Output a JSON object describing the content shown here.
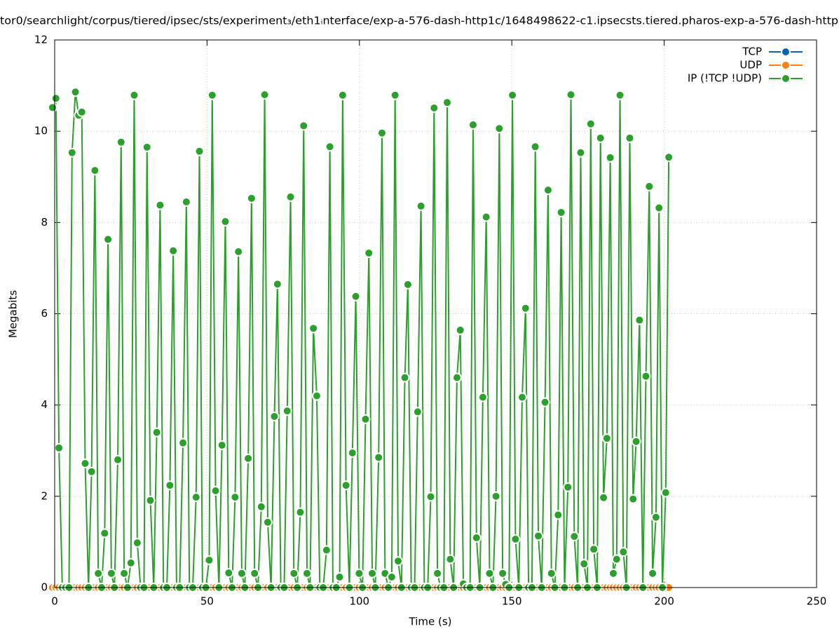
{
  "chart_data": {
    "type": "line",
    "title": "tor0/searchlight/corpus/tiered/ipsec/sts/experiment₃/eth1ᵢnterface/exp-a-576-dash-http1c/1648498622-c1.ipsecsts.tiered.pharos-exp-a-576-dash-http",
    "x_label": "Time (s)",
    "y_label": "Megabits",
    "xlim": [
      0,
      250
    ],
    "xticks": [
      0,
      50,
      100,
      150,
      200,
      250
    ],
    "ylim": [
      0,
      12
    ],
    "yticks": [
      0,
      2,
      4,
      6,
      8,
      10,
      12
    ],
    "grid": true,
    "legend": "top-right",
    "x": [
      -0.7,
      0.4,
      1.4,
      2.5,
      3.6,
      4.7,
      5.7,
      6.8,
      7.9,
      8.9,
      10.0,
      11.1,
      12.1,
      13.2,
      14.3,
      15.4,
      16.4,
      17.5,
      18.6,
      19.6,
      20.7,
      21.8,
      22.8,
      23.9,
      25.0,
      26.1,
      27.1,
      28.2,
      29.3,
      30.3,
      31.4,
      32.5,
      33.5,
      34.6,
      35.7,
      36.8,
      37.8,
      38.9,
      40.0,
      41.0,
      42.1,
      43.2,
      44.2,
      45.3,
      46.4,
      47.5,
      48.5,
      49.6,
      50.7,
      51.7,
      52.8,
      53.9,
      54.9,
      56.0,
      57.1,
      58.2,
      59.2,
      60.3,
      61.4,
      62.4,
      63.5,
      64.6,
      65.6,
      66.7,
      67.8,
      68.9,
      69.9,
      71.0,
      72.1,
      73.1,
      74.2,
      75.3,
      76.3,
      77.4,
      78.5,
      79.6,
      80.6,
      81.7,
      82.8,
      83.8,
      84.9,
      86.0,
      87.0,
      88.1,
      89.2,
      90.3,
      91.3,
      92.4,
      93.5,
      94.5,
      95.6,
      96.7,
      97.7,
      98.8,
      99.9,
      101.0,
      102.0,
      103.1,
      104.2,
      105.2,
      106.3,
      107.4,
      108.4,
      109.5,
      110.6,
      111.7,
      112.7,
      113.8,
      114.9,
      115.9,
      117.0,
      118.1,
      119.1,
      120.2,
      121.3,
      122.4,
      123.4,
      124.5,
      125.6,
      126.6,
      127.7,
      128.8,
      129.8,
      130.9,
      132.0,
      133.1,
      134.1,
      135.2,
      136.3,
      137.3,
      138.4,
      139.5,
      140.5,
      141.6,
      142.7,
      143.8,
      144.8,
      145.9,
      147.0,
      148.0,
      149.1,
      150.2,
      151.2,
      152.3,
      153.4,
      154.5,
      155.5,
      156.6,
      157.7,
      158.7,
      159.8,
      160.9,
      161.9,
      163.0,
      164.1,
      165.2,
      166.2,
      167.3,
      168.4,
      169.4,
      170.5,
      171.6,
      172.6,
      173.7,
      174.8,
      175.9,
      176.9,
      178.0,
      179.1,
      180.1,
      181.2,
      182.3,
      183.3,
      184.4,
      185.5,
      186.6,
      187.6,
      188.7,
      189.8,
      190.8,
      191.9,
      193.0,
      194.0,
      195.1,
      196.2,
      197.3,
      198.3,
      199.4,
      200.5,
      201.5
    ],
    "series": [
      {
        "name": "TCP",
        "color": "#0a62b4",
        "values": [
          0,
          0,
          0,
          0,
          0,
          0,
          0,
          0,
          0,
          0,
          0,
          0,
          0,
          0,
          0,
          0,
          0,
          0,
          0,
          0,
          0,
          0,
          0,
          0,
          0,
          0,
          0,
          0,
          0,
          0,
          0,
          0,
          0,
          0,
          0,
          0,
          0,
          0,
          0,
          0,
          0,
          0,
          0,
          0,
          0,
          0,
          0,
          0,
          0,
          0,
          0,
          0,
          0,
          0,
          0,
          0,
          0,
          0,
          0,
          0,
          0,
          0,
          0,
          0,
          0,
          0,
          0,
          0,
          0,
          0,
          0,
          0,
          0,
          0,
          0,
          0,
          0,
          0,
          0,
          0,
          0,
          0,
          0,
          0,
          0,
          0,
          0,
          0,
          0,
          0,
          0,
          0,
          0,
          0,
          0,
          0,
          0,
          0,
          0,
          0,
          0,
          0,
          0,
          0,
          0,
          0,
          0,
          0,
          0,
          0,
          0,
          0,
          0,
          0,
          0,
          0,
          0,
          0,
          0,
          0,
          0,
          0,
          0,
          0,
          0,
          0,
          0,
          0,
          0,
          0,
          0,
          0,
          0,
          0,
          0,
          0,
          0,
          0,
          0,
          0,
          0,
          0,
          0,
          0,
          0,
          0,
          0,
          0,
          0,
          0,
          0,
          0,
          0,
          0,
          0,
          0,
          0,
          0,
          0,
          0,
          0,
          0,
          0,
          0,
          0,
          0,
          0,
          0,
          0,
          0,
          0,
          0,
          0,
          0,
          0,
          0,
          0,
          0,
          0,
          0,
          0,
          0,
          0,
          0,
          0,
          0,
          0,
          0,
          0,
          0
        ]
      },
      {
        "name": "UDP",
        "color": "#ff7f0e",
        "values": [
          0,
          0,
          0,
          0,
          0,
          0,
          0,
          0,
          0,
          0,
          0,
          0,
          0,
          0,
          0,
          0,
          0,
          0,
          0,
          0,
          0,
          0,
          0,
          0,
          0,
          0,
          0,
          0,
          0,
          0,
          0,
          0,
          0,
          0,
          0,
          0,
          0,
          0,
          0,
          0,
          0,
          0,
          0,
          0,
          0,
          0,
          0,
          0,
          0,
          0,
          0,
          0,
          0,
          0,
          0,
          0,
          0,
          0,
          0,
          0,
          0,
          0,
          0,
          0,
          0,
          0,
          0,
          0,
          0,
          0,
          0,
          0,
          0,
          0,
          0,
          0,
          0,
          0,
          0,
          0,
          0,
          0,
          0,
          0,
          0,
          0,
          0,
          0,
          0,
          0,
          0,
          0,
          0,
          0,
          0,
          0,
          0,
          0,
          0,
          0,
          0,
          0,
          0,
          0,
          0,
          0,
          0,
          0,
          0,
          0,
          0,
          0,
          0,
          0,
          0,
          0,
          0,
          0,
          0,
          0,
          0,
          0,
          0,
          0,
          0,
          0,
          0,
          0,
          0,
          0,
          0,
          0,
          0,
          0,
          0,
          0,
          0,
          0,
          0,
          0,
          0,
          0,
          0,
          0,
          0,
          0,
          0,
          0,
          0,
          0,
          0,
          0,
          0,
          0,
          0,
          0,
          0,
          0,
          0,
          0,
          0,
          0,
          0,
          0,
          0,
          0,
          0,
          0,
          0,
          0,
          0,
          0,
          0,
          0,
          0,
          0,
          0,
          0,
          0,
          0,
          0,
          0,
          0,
          0,
          0,
          0,
          0,
          0,
          0,
          0
        ]
      },
      {
        "name": "IP (!TCP  !UDP)",
        "color": "#2ca02c",
        "values": [
          10.52,
          10.72,
          3.06,
          0,
          0,
          0,
          9.53,
          10.86,
          10.35,
          10.42,
          2.72,
          0,
          2.54,
          9.14,
          0.31,
          0,
          1.19,
          7.63,
          0.31,
          0,
          2.8,
          9.76,
          0.31,
          0,
          0.54,
          10.79,
          0.98,
          0,
          0,
          9.65,
          1.91,
          0,
          3.4,
          8.38,
          0,
          0,
          2.24,
          7.38,
          0,
          0,
          3.17,
          8.45,
          0,
          0,
          1.98,
          9.56,
          0,
          0,
          0.6,
          10.79,
          2.12,
          0,
          3.12,
          8.02,
          0.32,
          0,
          1.98,
          7.36,
          0.31,
          0,
          2.83,
          8.53,
          0.31,
          0,
          1.77,
          10.8,
          1.43,
          0,
          3.75,
          6.65,
          0,
          0,
          3.87,
          8.56,
          0.31,
          0,
          1.65,
          10.12,
          0.31,
          0,
          5.68,
          4.2,
          0,
          0,
          0.82,
          9.66,
          0,
          0,
          0.23,
          10.79,
          2.24,
          0,
          2.95,
          6.38,
          0.31,
          0,
          3.69,
          7.33,
          0.31,
          0,
          2.85,
          9.96,
          0.31,
          0,
          0.23,
          10.79,
          0.58,
          0,
          4.6,
          6.64,
          0,
          0,
          3.85,
          8.36,
          0,
          0,
          1.99,
          10.51,
          0.31,
          0,
          0,
          10.63,
          0.62,
          0,
          4.6,
          5.64,
          0.08,
          0,
          0,
          10.14,
          1.09,
          0,
          4.17,
          8.12,
          0.31,
          0,
          2.0,
          10.06,
          0.31,
          0.07,
          0,
          10.79,
          1.06,
          0,
          4.17,
          6.12,
          0,
          0,
          9.66,
          1.13,
          0,
          4.06,
          8.71,
          0.31,
          0,
          1.59,
          8.22,
          0,
          2.2,
          10.8,
          1.12,
          0,
          9.53,
          0.52,
          0,
          10.16,
          0.84,
          0,
          9.85,
          1.97,
          3.27,
          9.42,
          0.31,
          0.62,
          10.79,
          0.78,
          0,
          9.85,
          1.94,
          3.2,
          5.86,
          0,
          4.63,
          8.79,
          0.31,
          1.54,
          8.32,
          0,
          2.08,
          9.43
        ]
      }
    ]
  }
}
